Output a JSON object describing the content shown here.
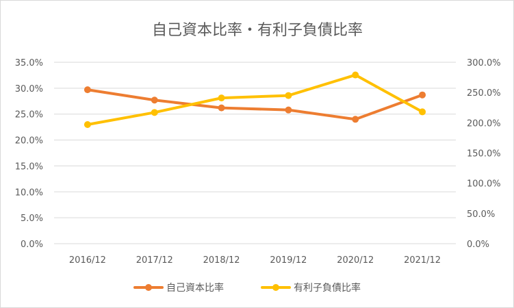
{
  "chart_data": {
    "type": "line",
    "title": "自己資本比率・有利子負債比率",
    "categories": [
      "2016/12",
      "2017/12",
      "2018/12",
      "2019/12",
      "2020/12",
      "2021/12"
    ],
    "series": [
      {
        "name": "自己資本比率",
        "axis": "left",
        "color": "#ed7d31",
        "values": [
          29.7,
          27.7,
          26.2,
          25.8,
          24.0,
          28.7
        ]
      },
      {
        "name": "有利子負債比率",
        "axis": "right",
        "color": "#ffc000",
        "values": [
          197,
          217,
          241,
          245,
          279,
          218
        ]
      }
    ],
    "y_left": {
      "ylim": [
        0,
        35
      ],
      "ticks": [
        "0.0%",
        "5.0%",
        "10.0%",
        "15.0%",
        "20.0%",
        "25.0%",
        "30.0%",
        "35.0%"
      ]
    },
    "y_right": {
      "ylim": [
        0,
        300
      ],
      "ticks": [
        "0.0%",
        "50.0%",
        "100.0%",
        "150.0%",
        "200.0%",
        "250.0%",
        "300.0%"
      ]
    },
    "grid": true,
    "legend": "bottom"
  }
}
